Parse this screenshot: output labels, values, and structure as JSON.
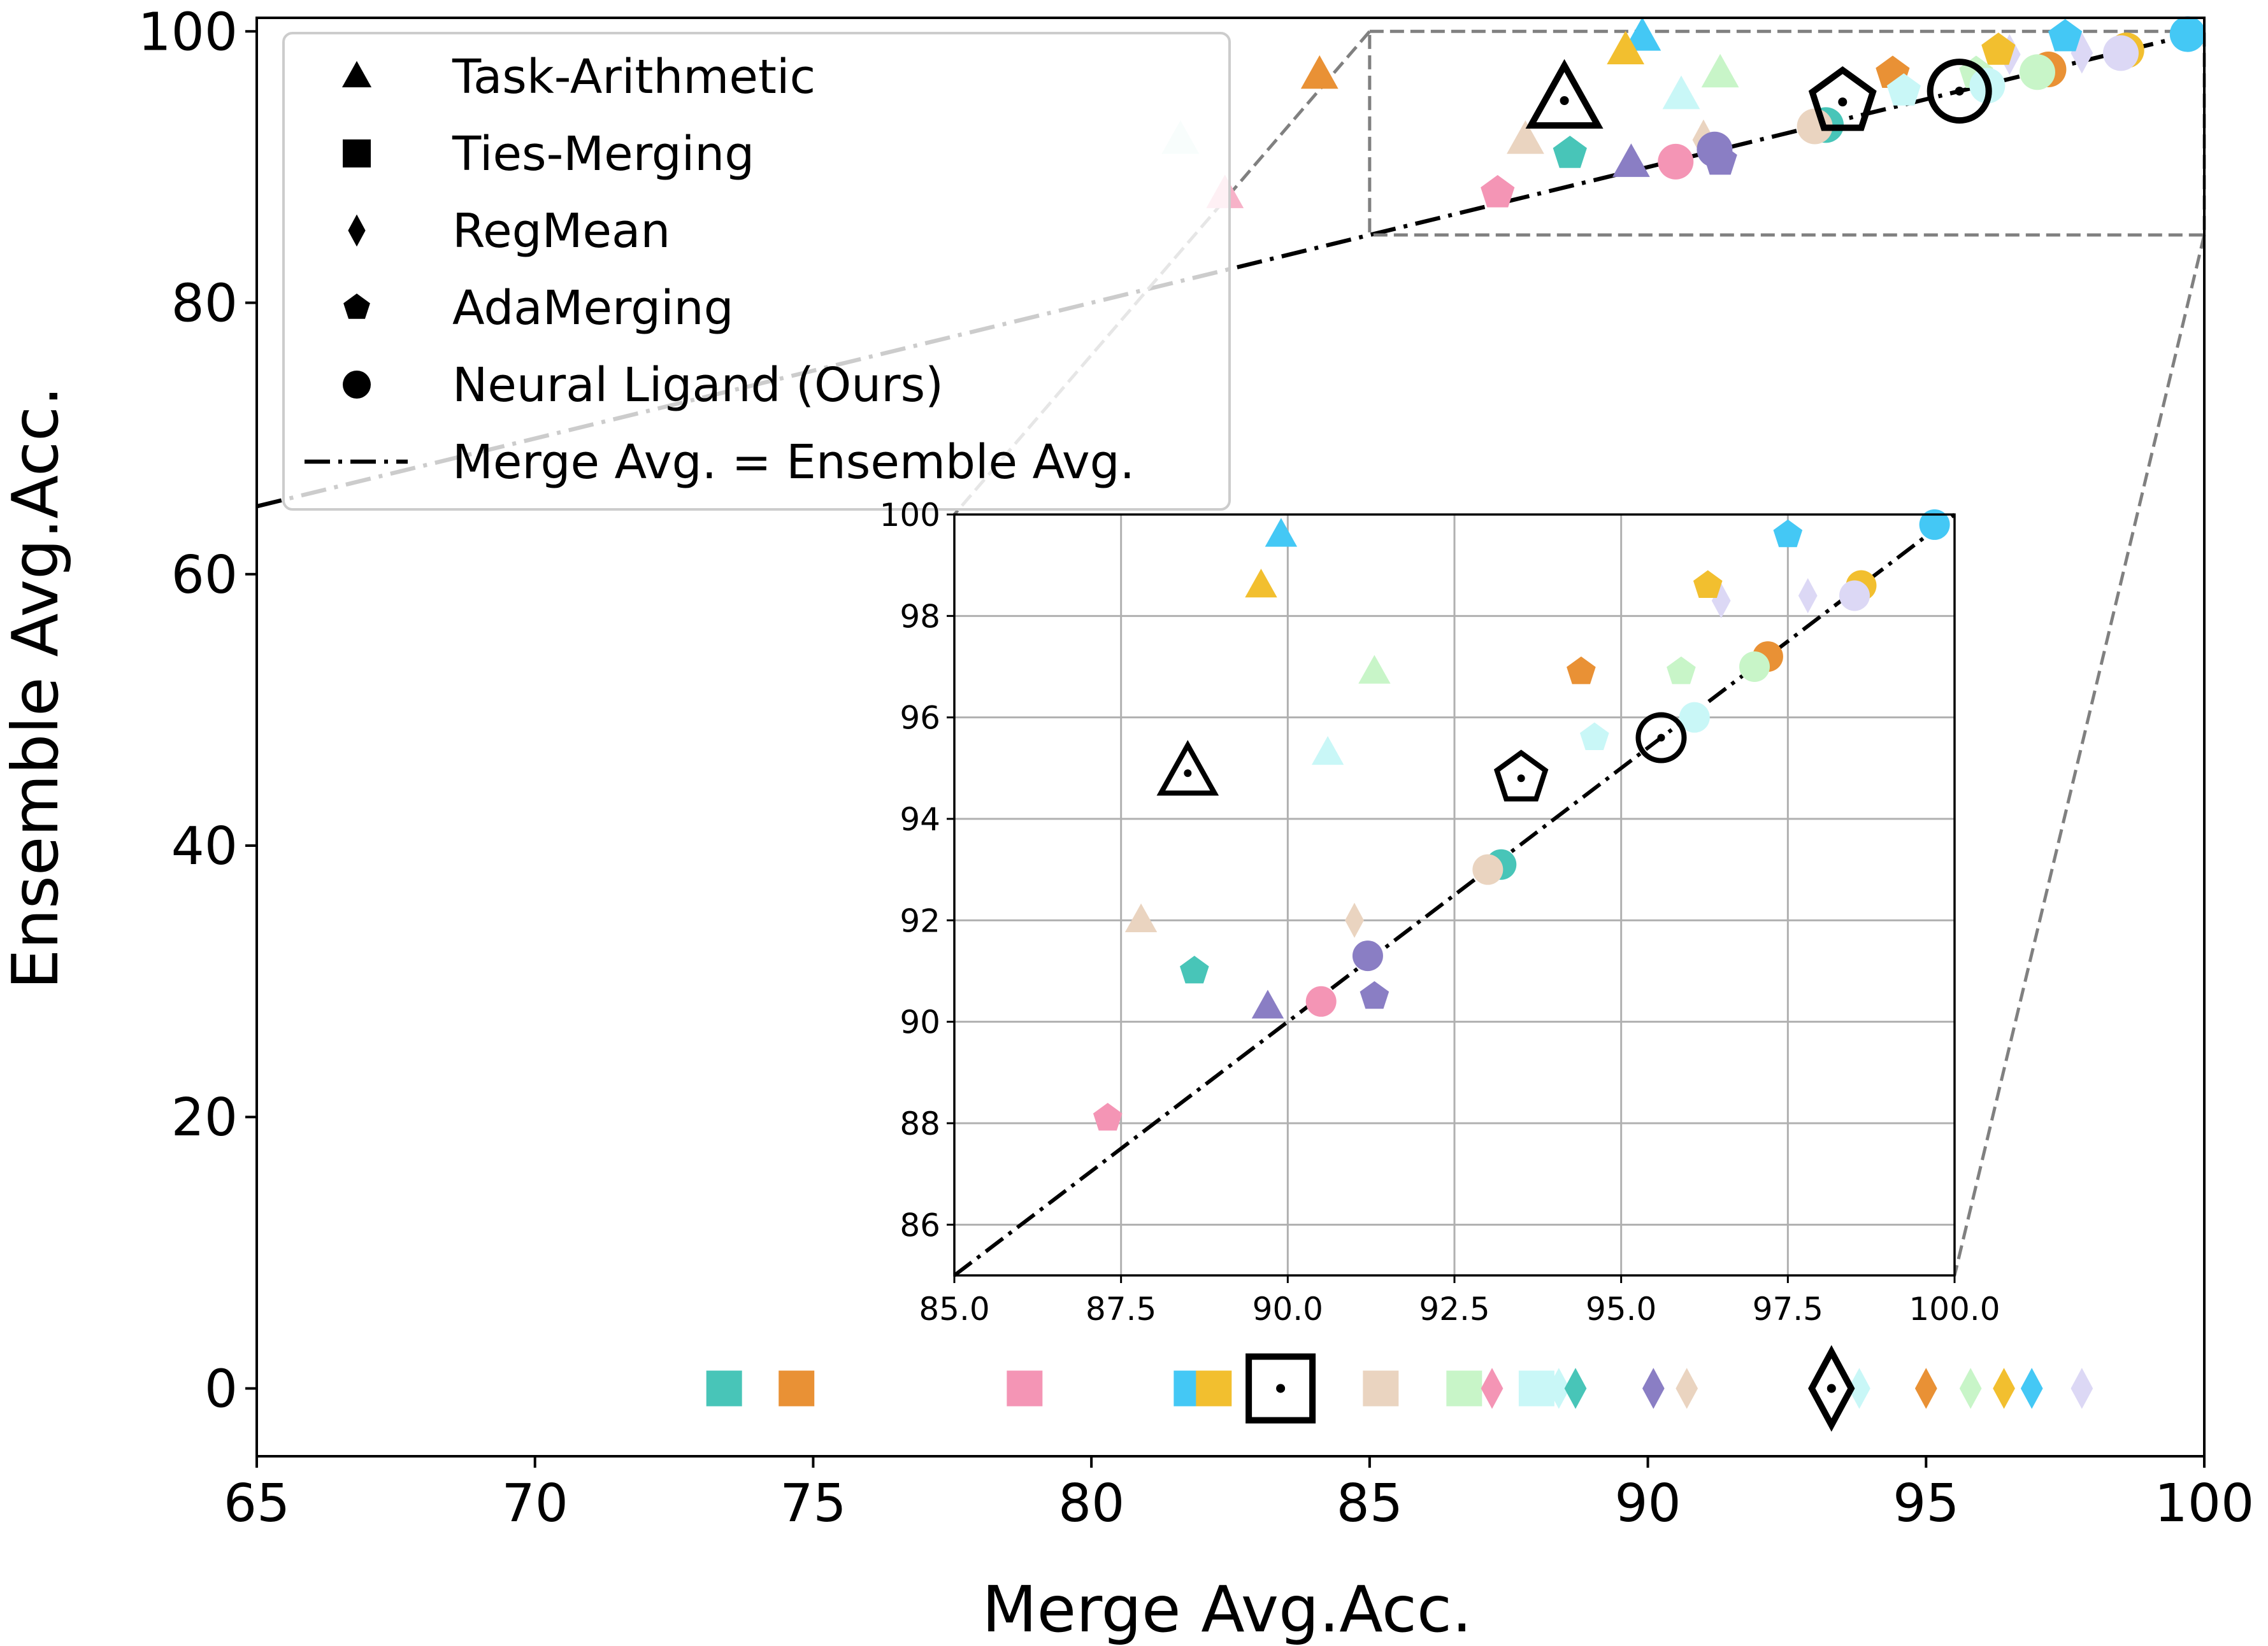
{
  "chart_data": {
    "type": "scatter",
    "xlabel": "Merge Avg.Acc.",
    "ylabel": "Ensemble Avg.Acc.",
    "xlim": [
      65,
      100
    ],
    "ylim": [
      -5,
      101
    ],
    "x_ticks": [
      "65",
      "70",
      "75",
      "80",
      "85",
      "90",
      "95",
      "100"
    ],
    "y_ticks": [
      "0",
      "20",
      "40",
      "60",
      "80",
      "100"
    ],
    "legend": {
      "position": "upper-left",
      "entries": [
        {
          "label": "Task-Arithmetic",
          "marker": "triangle"
        },
        {
          "label": "Ties-Merging",
          "marker": "square"
        },
        {
          "label": "RegMean",
          "marker": "diamond"
        },
        {
          "label": "AdaMerging",
          "marker": "pentagon"
        },
        {
          "label": "Neural Ligand (Ours)",
          "marker": "circle"
        },
        {
          "label": "Merge Avg. = Ensemble Avg.",
          "marker": "dashdot-line"
        }
      ]
    },
    "reference_line": {
      "label": "Merge Avg. = Ensemble Avg.",
      "x": [
        65,
        100
      ],
      "y": [
        65,
        100
      ]
    },
    "zoom_region": {
      "xlim": [
        85,
        100
      ],
      "ylim": [
        85,
        100
      ]
    },
    "inset": {
      "xlim": [
        85,
        100
      ],
      "ylim": [
        85,
        100
      ],
      "x_ticks": [
        "85.0",
        "87.5",
        "90.0",
        "92.5",
        "95.0",
        "97.5",
        "100.0"
      ],
      "y_ticks": [
        "86",
        "88",
        "90",
        "92",
        "94",
        "96",
        "98",
        "100"
      ],
      "grid": true
    },
    "series": [
      {
        "name": "Task-Arithmetic",
        "marker": "triangle",
        "points": [
          {
            "x": 89.9,
            "y": 99.6,
            "color": "#44c8f5"
          },
          {
            "x": 89.6,
            "y": 98.6,
            "color": "#f2bf2f"
          },
          {
            "x": 91.3,
            "y": 96.9,
            "color": "#c8f5c8"
          },
          {
            "x": 90.6,
            "y": 95.3,
            "color": "#c9f7f7"
          },
          {
            "x": 87.8,
            "y": 92.0,
            "color": "#ead4c0"
          },
          {
            "x": 89.7,
            "y": 90.3,
            "color": "#8a7ec4"
          },
          {
            "x": 84.1,
            "y": 96.8,
            "color": "#e99135"
          },
          {
            "x": 81.6,
            "y": 92.0,
            "color": "#d9f2ee"
          },
          {
            "x": 82.4,
            "y": 88.0,
            "color": "#f7b2c8"
          }
        ]
      },
      {
        "name": "Ties-Merging",
        "marker": "square",
        "points": [
          {
            "x": 73.4,
            "y": 0,
            "color": "#48c5b8"
          },
          {
            "x": 74.7,
            "y": 0,
            "color": "#e99135"
          },
          {
            "x": 78.8,
            "y": 0,
            "color": "#f495b5"
          },
          {
            "x": 81.8,
            "y": 0,
            "color": "#44c8f5"
          },
          {
            "x": 82.2,
            "y": 0,
            "color": "#f2bf2f"
          },
          {
            "x": 85.2,
            "y": 0,
            "color": "#ead4c0"
          },
          {
            "x": 86.7,
            "y": 0,
            "color": "#c8f5c8"
          },
          {
            "x": 88.0,
            "y": 0,
            "color": "#c9f7f7"
          }
        ]
      },
      {
        "name": "RegMean",
        "marker": "diamond",
        "points": [
          {
            "x": 87.2,
            "y": 0,
            "color": "#f495b5"
          },
          {
            "x": 88.4,
            "y": 0,
            "color": "#c9f7f7"
          },
          {
            "x": 88.7,
            "y": 0,
            "color": "#48c5b8"
          },
          {
            "x": 90.1,
            "y": 0,
            "color": "#8a7ec4"
          },
          {
            "x": 90.7,
            "y": 0,
            "color": "#ead4c0"
          },
          {
            "x": 93.8,
            "y": 0,
            "color": "#c9f7f7"
          },
          {
            "x": 95.0,
            "y": 0,
            "color": "#e99135"
          },
          {
            "x": 95.8,
            "y": 0,
            "color": "#c8f5c8"
          },
          {
            "x": 96.4,
            "y": 0,
            "color": "#f2bf2f"
          },
          {
            "x": 96.9,
            "y": 0,
            "color": "#44c8f5"
          },
          {
            "x": 97.8,
            "y": 0,
            "color": "#dcd8f5"
          },
          {
            "x": 97.8,
            "y": 98.4,
            "color": "#dcd8f5"
          },
          {
            "x": 96.5,
            "y": 98.3,
            "color": "#dcd8f5"
          },
          {
            "x": 91.0,
            "y": 92.0,
            "color": "#ead4c0"
          }
        ]
      },
      {
        "name": "AdaMerging",
        "marker": "pentagon",
        "points": [
          {
            "x": 97.5,
            "y": 99.6,
            "color": "#44c8f5"
          },
          {
            "x": 96.3,
            "y": 98.6,
            "color": "#f2bf2f"
          },
          {
            "x": 94.4,
            "y": 96.9,
            "color": "#e99135"
          },
          {
            "x": 95.9,
            "y": 96.9,
            "color": "#c8f5c8"
          },
          {
            "x": 94.6,
            "y": 95.6,
            "color": "#c9f7f7"
          },
          {
            "x": 88.6,
            "y": 91.0,
            "color": "#48c5b8"
          },
          {
            "x": 91.3,
            "y": 90.5,
            "color": "#8a7ec4"
          },
          {
            "x": 87.3,
            "y": 88.1,
            "color": "#f495b5"
          }
        ]
      },
      {
        "name": "Neural Ligand (Ours)",
        "marker": "circle",
        "points": [
          {
            "x": 99.7,
            "y": 99.8,
            "color": "#44c8f5"
          },
          {
            "x": 98.6,
            "y": 98.6,
            "color": "#f2bf2f"
          },
          {
            "x": 98.5,
            "y": 98.4,
            "color": "#dcd8f5"
          },
          {
            "x": 97.2,
            "y": 97.2,
            "color": "#e99135"
          },
          {
            "x": 97.0,
            "y": 97.0,
            "color": "#c8f5c8"
          },
          {
            "x": 96.1,
            "y": 96.0,
            "color": "#c9f7f7"
          },
          {
            "x": 93.2,
            "y": 93.1,
            "color": "#48c5b8"
          },
          {
            "x": 93.0,
            "y": 93.0,
            "color": "#ead4c0"
          },
          {
            "x": 91.2,
            "y": 91.3,
            "color": "#8a7ec4"
          },
          {
            "x": 90.5,
            "y": 90.4,
            "color": "#f495b5"
          }
        ]
      }
    ],
    "averages": [
      {
        "method": "Task-Arithmetic",
        "marker": "triangle",
        "x": 88.5,
        "y": 94.9
      },
      {
        "method": "Ties-Merging",
        "marker": "square",
        "x": 83.4,
        "y": 0
      },
      {
        "method": "RegMean",
        "marker": "diamond",
        "x": 93.3,
        "y": 0
      },
      {
        "method": "AdaMerging",
        "marker": "pentagon",
        "x": 93.5,
        "y": 94.8
      },
      {
        "method": "Neural Ligand (Ours)",
        "marker": "circle",
        "x": 95.6,
        "y": 95.6
      }
    ]
  }
}
